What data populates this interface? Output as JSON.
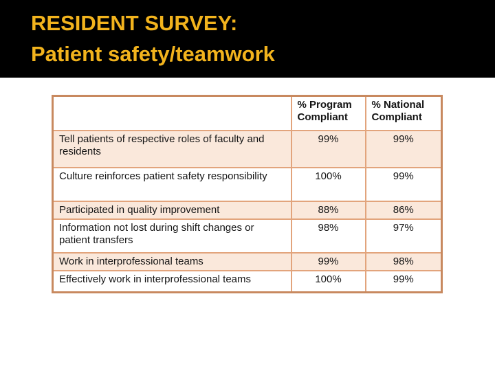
{
  "slide": {
    "title_line1": "RESIDENT SURVEY:",
    "title_line2": "Patient safety/teamwork"
  },
  "colors": {
    "banner_bg": "#000000",
    "title_gold": "#F2B31D",
    "table_outer_border": "#C8895F",
    "table_inner_border": "#E2A47C",
    "row_shade": "#FAE8DB",
    "row_plain": "#FFFFFF",
    "text": "#141414"
  },
  "table": {
    "headers": [
      "",
      "% Program Compliant",
      "% National Compliant"
    ],
    "rows": [
      {
        "label": "Tell patients of respective roles of faculty and residents",
        "program": "99%",
        "national": "99%"
      },
      {
        "label": "Culture reinforces patient safety responsibility",
        "program": "100%",
        "national": "99%"
      },
      {
        "label": "Participated in quality improvement",
        "program": "88%",
        "national": "86%"
      },
      {
        "label": "Information not lost during shift changes or patient transfers",
        "program": "98%",
        "national": "97%"
      },
      {
        "label": "Work in interprofessional teams",
        "program": "99%",
        "national": "98%"
      },
      {
        "label": "Effectively work in interprofessional teams",
        "program": "100%",
        "national": "99%"
      }
    ]
  }
}
